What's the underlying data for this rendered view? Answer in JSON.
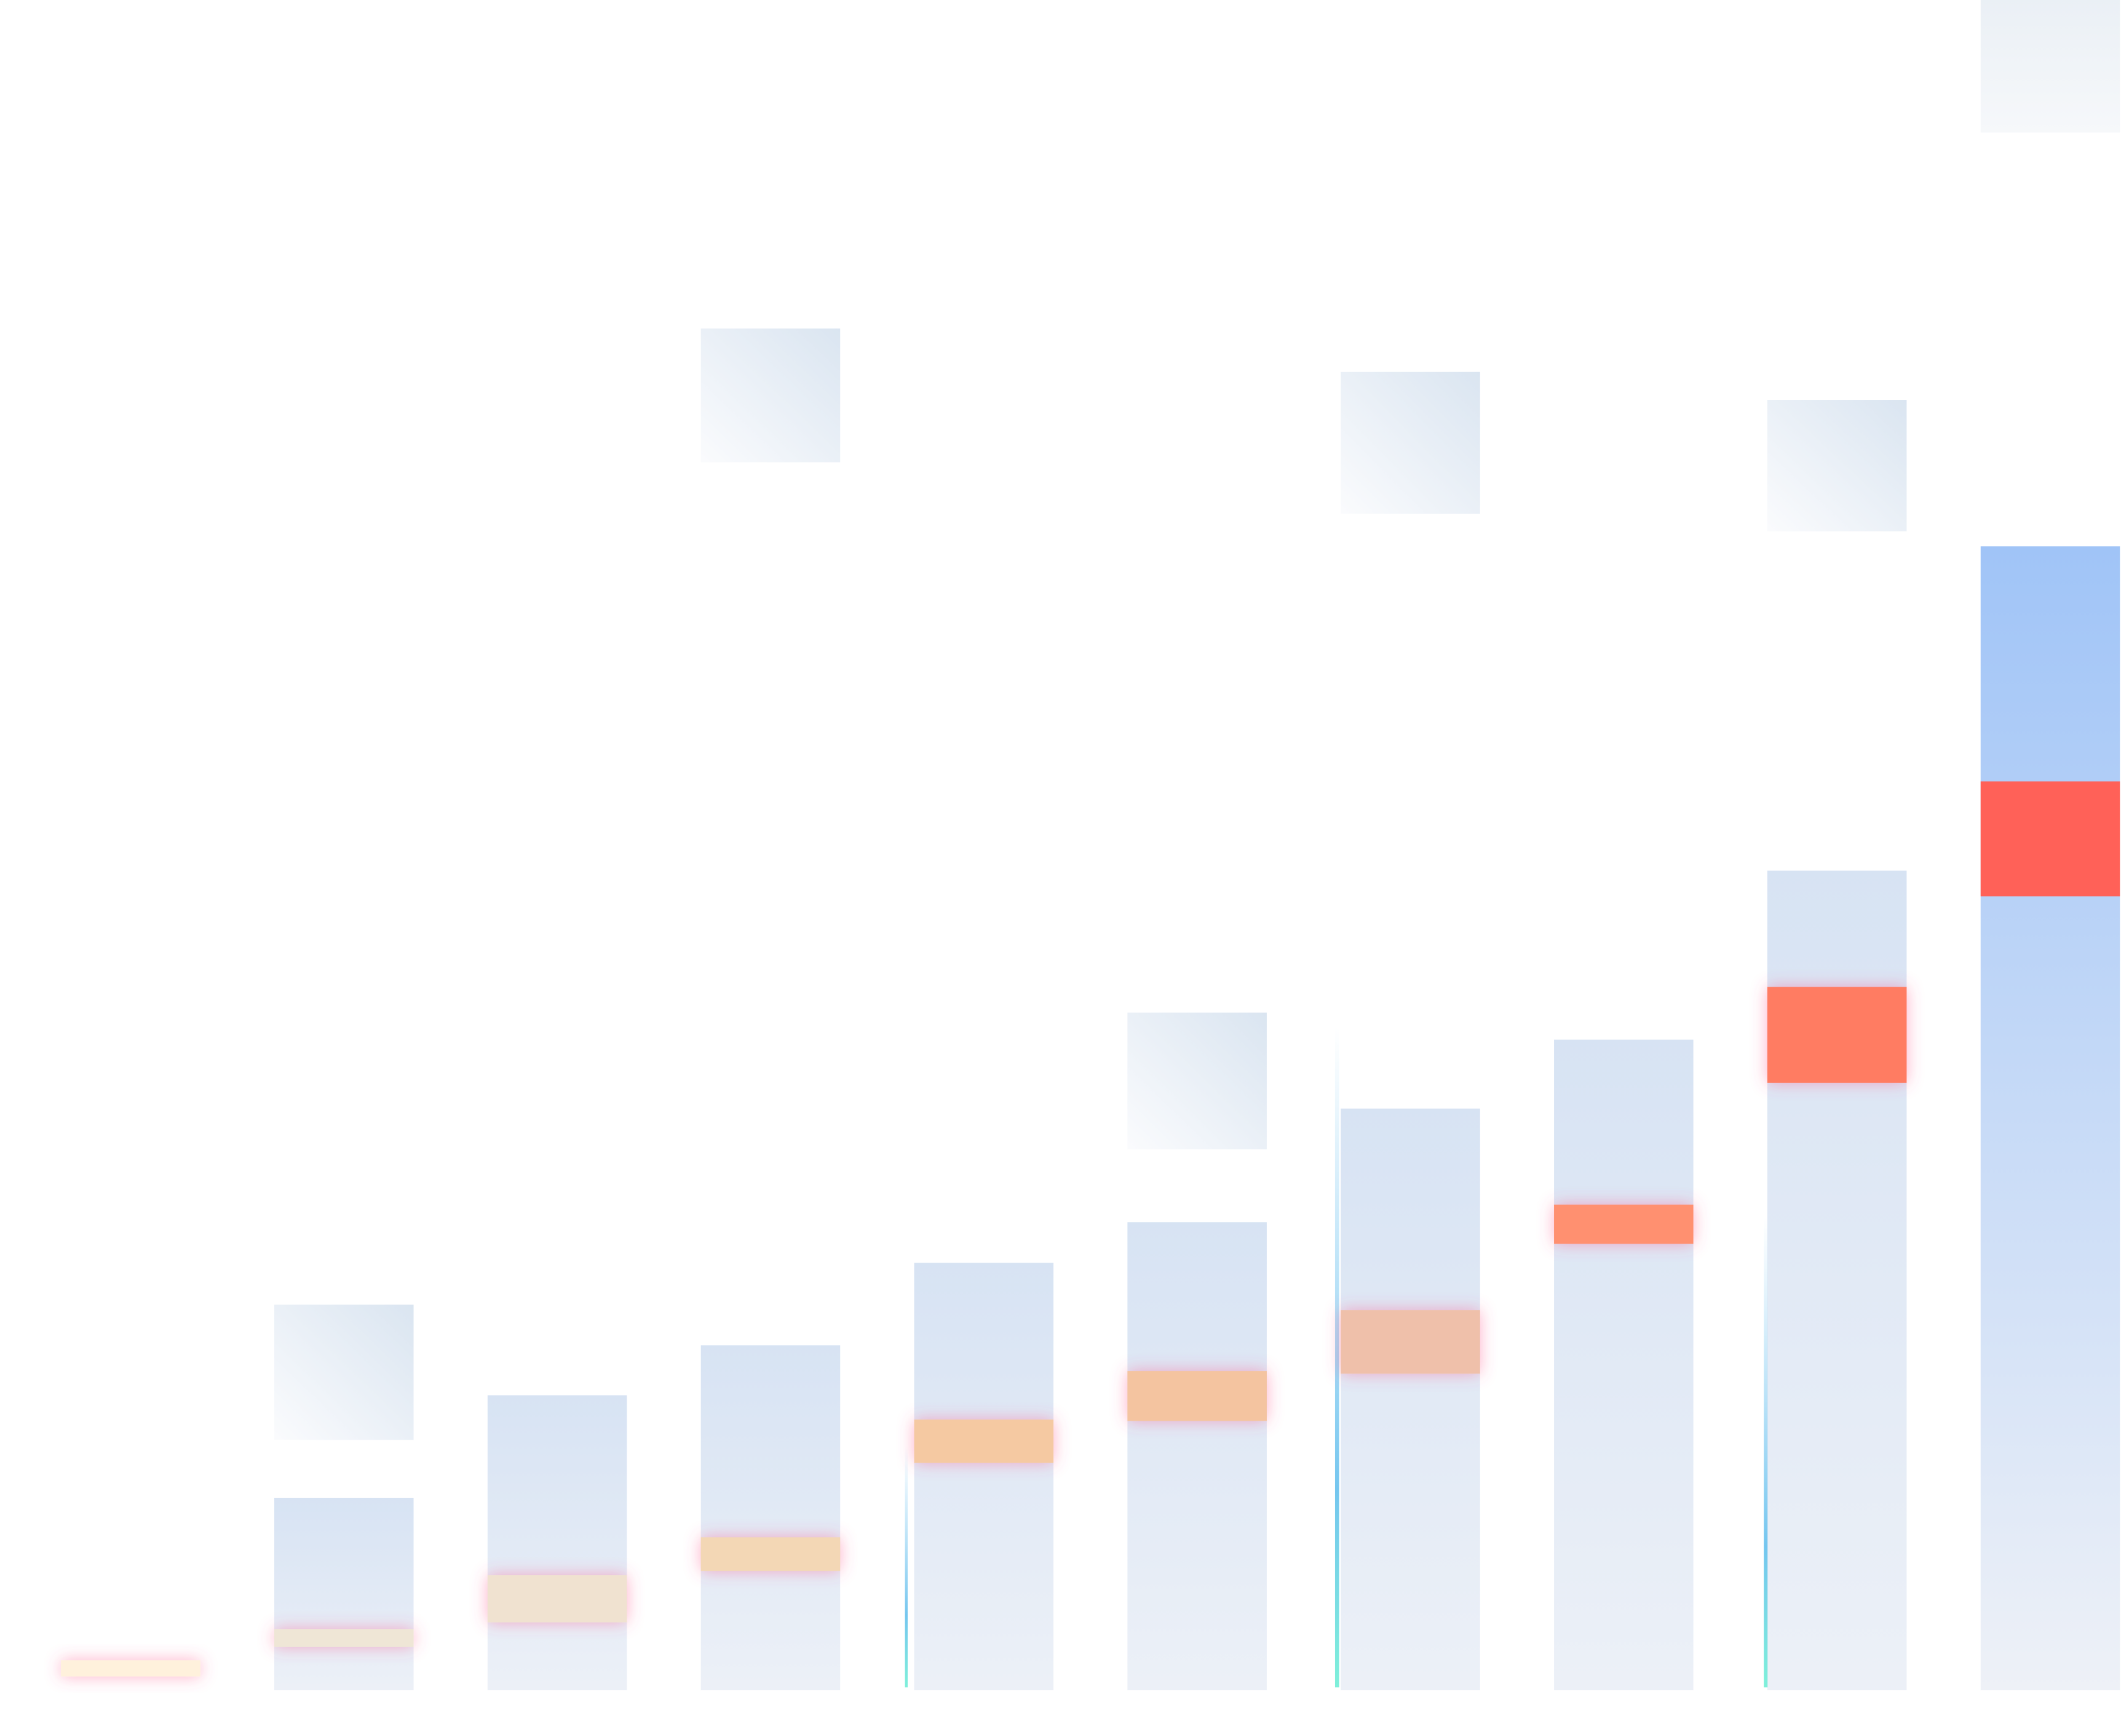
{
  "chart_data": {
    "type": "bar",
    "categories": [
      null,
      null,
      null,
      null,
      null,
      null,
      null,
      null,
      null,
      null
    ],
    "ylim": [
      0,
      1250
    ],
    "series": [
      {
        "color": "#e4eaf4",
        "top_color": "#c6d7ee",
        "values": [
          0,
          142,
          218,
          255,
          316,
          346,
          430,
          481,
          606,
          846
        ]
      },
      {
        "color": "#e6ecf5",
        "low": [
          null,
          185,
          null,
          908,
          null,
          400,
          870,
          null,
          857,
          1152
        ],
        "values": [
          null,
          285,
          null,
          1007,
          null,
          501,
          975,
          null,
          954,
          1250
        ]
      },
      {
        "colors": [
          "#fff1dc",
          "#efe6d6",
          "#f0e2d0",
          "#f3d7b5",
          "#f5c9a2",
          "#f4c4a0",
          "#efc0aa",
          "#ff9070",
          "#ff7c62",
          "#ff6158"
        ],
        "low": [
          10,
          32,
          50,
          88,
          168,
          199,
          234,
          330,
          449,
          587
        ],
        "values": [
          22,
          45,
          85,
          113,
          200,
          236,
          281,
          359,
          520,
          672
        ]
      }
    ]
  }
}
